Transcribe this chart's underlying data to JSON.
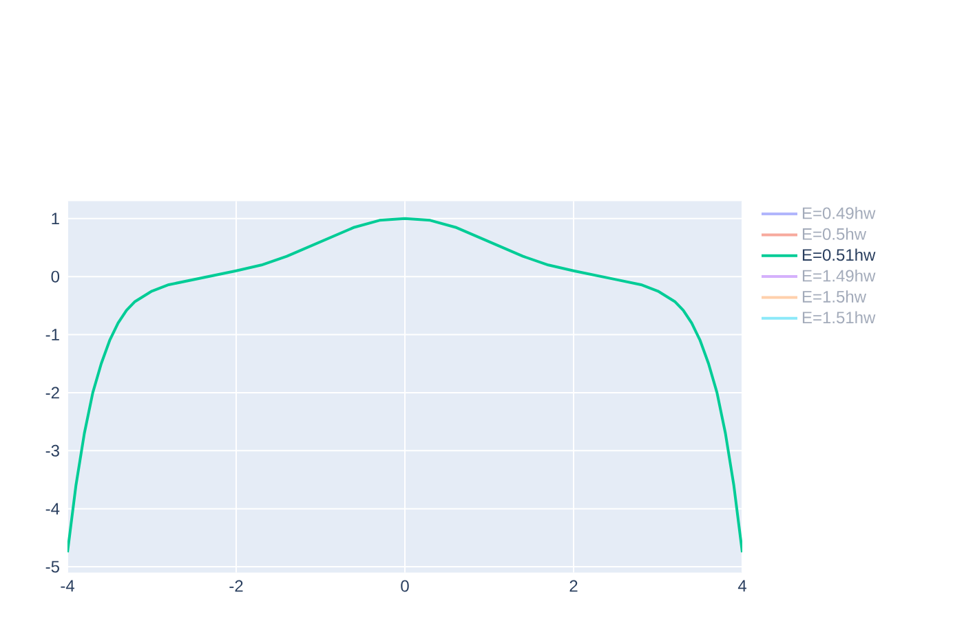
{
  "chart_data": {
    "type": "line",
    "xlim": [
      -4,
      4
    ],
    "ylim": [
      -5.1,
      1.3
    ],
    "xticks": [
      -4,
      -2,
      0,
      2,
      4
    ],
    "yticks": [
      -5,
      -4,
      -3,
      -2,
      -1,
      0,
      1
    ],
    "grid": true,
    "legend": "top right",
    "x": [
      -4,
      -3.9,
      -3.8,
      -3.7,
      -3.6,
      -3.5,
      -3.4,
      -3.3,
      -3.2,
      -3.0,
      -2.8,
      -2.5,
      -2.0,
      -1.7,
      -1.4,
      -1.0,
      -0.6,
      -0.3,
      0,
      0.3,
      0.6,
      1.0,
      1.4,
      1.7,
      2.0,
      2.5,
      2.8,
      3.0,
      3.2,
      3.3,
      3.4,
      3.5,
      3.6,
      3.7,
      3.8,
      3.9,
      4
    ],
    "series": [
      {
        "name": "E=0.49hw",
        "color": "#b1b6fc",
        "values": [
          null,
          null,
          null,
          null,
          null,
          null,
          null,
          null,
          null,
          null,
          null,
          null,
          null,
          null,
          null,
          null,
          null,
          null,
          null,
          null,
          null,
          null,
          null,
          null,
          null,
          null,
          null,
          null,
          null,
          null,
          null,
          null,
          null,
          null,
          null,
          null,
          null
        ]
      },
      {
        "name": "E=0.5hw",
        "color": "#f7aa9d",
        "values": [
          null,
          null,
          null,
          null,
          null,
          null,
          null,
          null,
          null,
          null,
          null,
          null,
          null,
          null,
          null,
          null,
          null,
          null,
          null,
          null,
          null,
          null,
          null,
          null,
          null,
          null,
          null,
          null,
          null,
          null,
          null,
          null,
          null,
          null,
          null,
          null,
          null
        ]
      },
      {
        "name": "E=0.51hw",
        "color": "#00cc96",
        "values": [
          -4.75,
          -3.6,
          -2.7,
          -2.0,
          -1.5,
          -1.1,
          -0.8,
          -0.58,
          -0.43,
          -0.25,
          -0.14,
          -0.05,
          0.1,
          0.2,
          0.35,
          0.6,
          0.85,
          0.97,
          1.0,
          0.97,
          0.85,
          0.6,
          0.35,
          0.2,
          0.1,
          -0.05,
          -0.14,
          -0.25,
          -0.43,
          -0.58,
          -0.8,
          -1.1,
          -1.5,
          -2.0,
          -2.7,
          -3.6,
          -4.75
        ]
      },
      {
        "name": "E=1.49hw",
        "color": "#d5b1fc",
        "values": [
          null,
          null,
          null,
          null,
          null,
          null,
          null,
          null,
          null,
          null,
          null,
          null,
          null,
          null,
          null,
          null,
          null,
          null,
          null,
          null,
          null,
          null,
          null,
          null,
          null,
          null,
          null,
          null,
          null,
          null,
          null,
          null,
          null,
          null,
          null,
          null,
          null
        ]
      },
      {
        "name": "E=1.5hw",
        "color": "#ffd0ac",
        "values": [
          null,
          null,
          null,
          null,
          null,
          null,
          null,
          null,
          null,
          null,
          null,
          null,
          null,
          null,
          null,
          null,
          null,
          null,
          null,
          null,
          null,
          null,
          null,
          null,
          null,
          null,
          null,
          null,
          null,
          null,
          null,
          null,
          null,
          null,
          null,
          null,
          null
        ]
      },
      {
        "name": "E=1.51hw",
        "color": "#8ce9f9",
        "values": [
          null,
          null,
          null,
          null,
          null,
          null,
          null,
          null,
          null,
          null,
          null,
          null,
          null,
          null,
          null,
          null,
          null,
          null,
          null,
          null,
          null,
          null,
          null,
          null,
          null,
          null,
          null,
          null,
          null,
          null,
          null,
          null,
          null,
          null,
          null,
          null,
          null
        ]
      }
    ]
  }
}
